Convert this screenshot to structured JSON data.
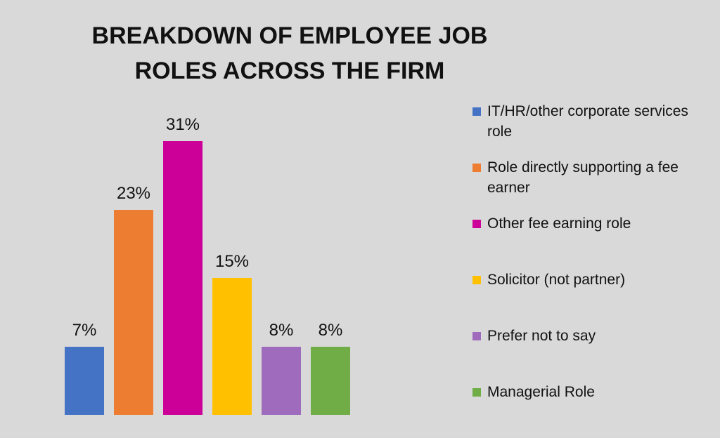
{
  "chart_data": {
    "type": "bar",
    "title": "BREAKDOWN OF EMPLOYEE JOB ROLES ACROSS THE FIRM",
    "categories": [
      "IT/HR/other corporate services role",
      "Role directly supporting a fee earner",
      "Other fee earning role",
      "Solicitor (not partner)",
      "Prefer not to say",
      "Managerial Role"
    ],
    "values": [
      7,
      23,
      31,
      15,
      8,
      8
    ],
    "data_labels": [
      "7%",
      "23%",
      "31%",
      "15%",
      "8%",
      "8%"
    ],
    "colors": [
      "#4472c4",
      "#ed7d31",
      "#cc0099",
      "#ffc000",
      "#9e6bbd",
      "#70ad47"
    ],
    "legend_position": "right",
    "grid": false,
    "xlabel": "",
    "ylabel": ""
  }
}
